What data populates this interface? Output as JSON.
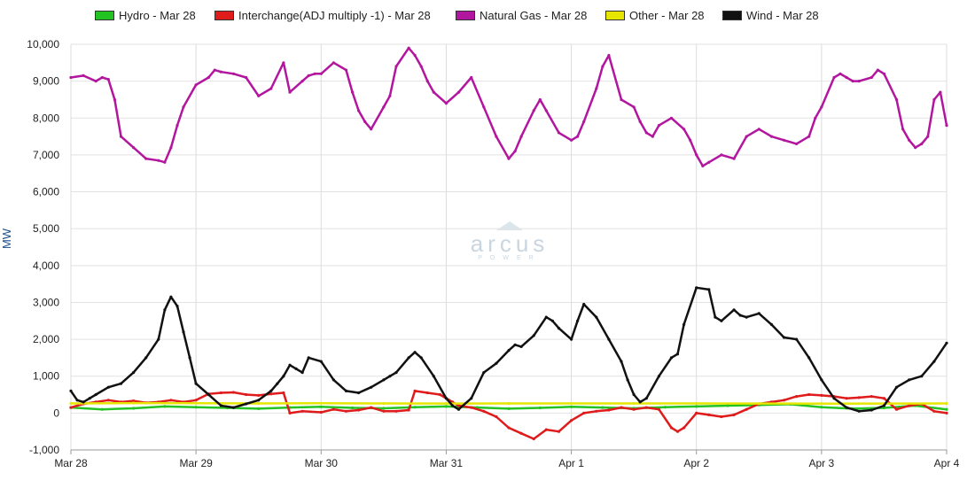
{
  "watermark": {
    "brand": "arcus",
    "sub": "POWER"
  },
  "chart_data": {
    "type": "line",
    "title": "",
    "xlabel": "",
    "ylabel": "MW",
    "ylim": [
      -1000,
      10000
    ],
    "yticks": [
      -1000,
      0,
      1000,
      2000,
      3000,
      4000,
      5000,
      6000,
      7000,
      8000,
      9000,
      10000
    ],
    "yticklabels": [
      "-1,000",
      "0",
      "1,000",
      "2,000",
      "3,000",
      "4,000",
      "5,000",
      "6,000",
      "7,000",
      "8,000",
      "9,000",
      "10,000"
    ],
    "xlim": [
      0,
      7
    ],
    "xticks": [
      0,
      1,
      2,
      3,
      4,
      5,
      6,
      7
    ],
    "xticklabels": [
      "Mar 28",
      "Mar 29",
      "Mar 30",
      "Mar 31",
      "Apr 1",
      "Apr 2",
      "Apr 3",
      "Apr 4"
    ],
    "grid": true,
    "legend_position": "top",
    "series": [
      {
        "name": "Hydro - Mar 28",
        "color": "#22c322",
        "x": [
          0,
          0.25,
          0.5,
          0.75,
          1,
          1.25,
          1.5,
          1.75,
          2,
          2.25,
          2.5,
          2.75,
          3,
          3.25,
          3.5,
          3.75,
          4,
          4.25,
          4.5,
          4.75,
          5,
          5.25,
          5.5,
          5.75,
          6,
          6.25,
          6.5,
          6.75,
          7
        ],
        "values": [
          150,
          100,
          130,
          180,
          160,
          140,
          120,
          150,
          170,
          140,
          130,
          160,
          180,
          150,
          120,
          140,
          170,
          150,
          130,
          160,
          180,
          200,
          220,
          240,
          160,
          120,
          140,
          200,
          100
        ]
      },
      {
        "name": "Interchange(ADJ multiply -1) - Mar 28",
        "color": "#e01b1b",
        "x": [
          0,
          0.1,
          0.2,
          0.3,
          0.4,
          0.5,
          0.6,
          0.7,
          0.8,
          0.9,
          1,
          1.1,
          1.2,
          1.3,
          1.4,
          1.5,
          1.6,
          1.7,
          1.75,
          1.85,
          2,
          2.1,
          2.2,
          2.3,
          2.4,
          2.5,
          2.6,
          2.7,
          2.75,
          2.85,
          2.95,
          3.05,
          3.1,
          3.2,
          3.3,
          3.4,
          3.5,
          3.6,
          3.7,
          3.8,
          3.9,
          4,
          4.1,
          4.2,
          4.3,
          4.4,
          4.5,
          4.6,
          4.7,
          4.8,
          4.85,
          4.9,
          5,
          5.1,
          5.2,
          5.3,
          5.4,
          5.5,
          5.6,
          5.7,
          5.8,
          5.9,
          6,
          6.1,
          6.2,
          6.3,
          6.4,
          6.5,
          6.6,
          6.7,
          6.8,
          6.9,
          7
        ],
        "values": [
          150,
          250,
          300,
          350,
          300,
          330,
          280,
          300,
          350,
          300,
          350,
          520,
          550,
          560,
          500,
          480,
          520,
          550,
          0,
          50,
          20,
          100,
          50,
          80,
          150,
          50,
          50,
          80,
          600,
          550,
          500,
          300,
          200,
          150,
          50,
          -100,
          -400,
          -550,
          -700,
          -450,
          -500,
          -200,
          0,
          50,
          80,
          150,
          100,
          150,
          100,
          -400,
          -500,
          -400,
          0,
          -50,
          -100,
          -50,
          100,
          250,
          300,
          350,
          450,
          500,
          480,
          450,
          400,
          420,
          450,
          400,
          100,
          200,
          250,
          50,
          0
        ]
      },
      {
        "name": "Natural Gas - Mar 28",
        "color": "#b3169e",
        "x": [
          0,
          0.1,
          0.2,
          0.25,
          0.3,
          0.35,
          0.4,
          0.5,
          0.6,
          0.7,
          0.75,
          0.8,
          0.85,
          0.9,
          1,
          1.1,
          1.15,
          1.2,
          1.3,
          1.4,
          1.5,
          1.6,
          1.7,
          1.75,
          1.85,
          1.9,
          1.95,
          2,
          2.1,
          2.2,
          2.25,
          2.3,
          2.35,
          2.4,
          2.5,
          2.55,
          2.6,
          2.7,
          2.75,
          2.8,
          2.85,
          2.9,
          3,
          3.1,
          3.2,
          3.3,
          3.4,
          3.5,
          3.55,
          3.6,
          3.7,
          3.75,
          3.8,
          3.9,
          4,
          4.05,
          4.1,
          4.2,
          4.25,
          4.3,
          4.4,
          4.5,
          4.55,
          4.6,
          4.65,
          4.7,
          4.8,
          4.9,
          4.95,
          5,
          5.05,
          5.1,
          5.2,
          5.3,
          5.4,
          5.5,
          5.6,
          5.7,
          5.8,
          5.9,
          5.95,
          6,
          6.1,
          6.15,
          6.2,
          6.25,
          6.3,
          6.4,
          6.45,
          6.5,
          6.6,
          6.65,
          6.7,
          6.75,
          6.8,
          6.85,
          6.9,
          6.95,
          7
        ],
        "values": [
          9100,
          9150,
          9000,
          9100,
          9050,
          8500,
          7500,
          7200,
          6900,
          6850,
          6800,
          7200,
          7800,
          8300,
          8900,
          9100,
          9300,
          9250,
          9200,
          9100,
          8600,
          8800,
          9500,
          8700,
          9000,
          9150,
          9200,
          9200,
          9500,
          9300,
          8700,
          8200,
          7900,
          7700,
          8300,
          8600,
          9400,
          9900,
          9700,
          9400,
          9000,
          8700,
          8400,
          8700,
          9100,
          8300,
          7500,
          6900,
          7100,
          7500,
          8200,
          8500,
          8200,
          7600,
          7400,
          7500,
          7900,
          8800,
          9400,
          9700,
          8500,
          8300,
          7900,
          7600,
          7500,
          7800,
          8000,
          7700,
          7400,
          7000,
          6700,
          6800,
          7000,
          6900,
          7500,
          7700,
          7500,
          7400,
          7300,
          7500,
          8000,
          8300,
          9100,
          9200,
          9100,
          9000,
          9000,
          9100,
          9300,
          9200,
          8500,
          7700,
          7400,
          7200,
          7300,
          7500,
          8500,
          8700,
          7800
        ]
      },
      {
        "name": "Other - Mar 28",
        "color": "#e6e600",
        "x": [
          0,
          0.5,
          1,
          1.5,
          2,
          2.5,
          3,
          3.5,
          4,
          4.5,
          5,
          5.5,
          6,
          6.5,
          7
        ],
        "values": [
          260,
          270,
          265,
          260,
          265,
          262,
          258,
          260,
          262,
          260,
          262,
          258,
          255,
          258,
          260
        ]
      },
      {
        "name": "Wind - Mar 28",
        "color": "#111111",
        "x": [
          0,
          0.05,
          0.1,
          0.15,
          0.2,
          0.3,
          0.4,
          0.5,
          0.6,
          0.7,
          0.75,
          0.8,
          0.85,
          0.9,
          0.95,
          1,
          1.1,
          1.2,
          1.3,
          1.4,
          1.5,
          1.6,
          1.65,
          1.7,
          1.75,
          1.8,
          1.85,
          1.9,
          2,
          2.1,
          2.2,
          2.3,
          2.4,
          2.5,
          2.55,
          2.6,
          2.7,
          2.75,
          2.8,
          2.9,
          3,
          3.05,
          3.1,
          3.2,
          3.3,
          3.4,
          3.5,
          3.55,
          3.6,
          3.7,
          3.8,
          3.85,
          3.9,
          4,
          4.05,
          4.1,
          4.2,
          4.3,
          4.4,
          4.45,
          4.5,
          4.55,
          4.6,
          4.7,
          4.8,
          4.85,
          4.9,
          5,
          5.1,
          5.15,
          5.2,
          5.3,
          5.35,
          5.4,
          5.5,
          5.6,
          5.7,
          5.8,
          5.9,
          6,
          6.1,
          6.2,
          6.3,
          6.4,
          6.5,
          6.6,
          6.7,
          6.8,
          6.9,
          7
        ],
        "values": [
          600,
          350,
          300,
          400,
          500,
          700,
          800,
          1100,
          1500,
          2000,
          2800,
          3150,
          2900,
          2200,
          1500,
          800,
          500,
          200,
          150,
          250,
          350,
          600,
          800,
          1000,
          1300,
          1200,
          1100,
          1500,
          1400,
          900,
          600,
          550,
          700,
          900,
          1000,
          1100,
          1500,
          1650,
          1500,
          1000,
          400,
          200,
          100,
          400,
          1100,
          1350,
          1700,
          1850,
          1800,
          2100,
          2600,
          2500,
          2300,
          2000,
          2500,
          2950,
          2600,
          2000,
          1400,
          900,
          500,
          300,
          400,
          1000,
          1500,
          1600,
          2400,
          3400,
          3350,
          2600,
          2500,
          2800,
          2650,
          2600,
          2700,
          2400,
          2050,
          2000,
          1500,
          900,
          400,
          150,
          50,
          80,
          200,
          700,
          900,
          1000,
          1400,
          1900
        ]
      }
    ]
  }
}
